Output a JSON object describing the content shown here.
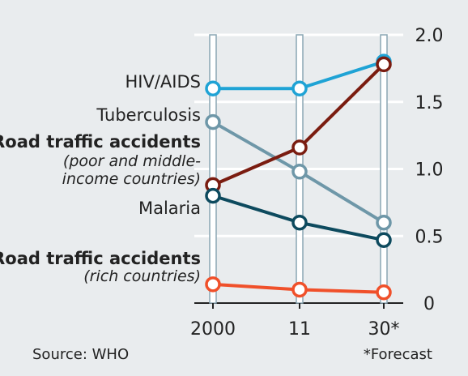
{
  "chart_data": {
    "type": "line",
    "x": [
      "2000",
      "11",
      "30*"
    ],
    "ylim": [
      0,
      2.0
    ],
    "yticks": [
      "0",
      "0.5",
      "1.0",
      "1.5",
      "2.0"
    ],
    "series": [
      {
        "name": "HIV/AIDS",
        "color": "#1fa3d5",
        "values": [
          1.6,
          1.6,
          1.8
        ]
      },
      {
        "name": "Tuberculosis",
        "color": "#6e97a8",
        "values": [
          1.35,
          0.98,
          0.6
        ]
      },
      {
        "name": "Road traffic accidents",
        "note": "(poor and middle-income countries)",
        "color": "#7a1c10",
        "values": [
          0.88,
          1.16,
          1.78
        ]
      },
      {
        "name": "Malaria",
        "color": "#0d4a5e",
        "values": [
          0.8,
          0.6,
          0.47
        ]
      },
      {
        "name": "Road traffic accidents",
        "note": "(rich countries)",
        "color": "#f0502a",
        "values": [
          0.14,
          0.1,
          0.08
        ]
      }
    ]
  },
  "labels": {
    "hiv": "HIV/AIDS",
    "tb": "Tuberculosis",
    "rta_poor_1": "Road traffic accidents",
    "rta_poor_2": "(poor and middle-",
    "rta_poor_3": "income countries)",
    "malaria": "Malaria",
    "rta_rich_1": "Road traffic accidents",
    "rta_rich_2": "(rich countries)"
  },
  "footer": {
    "source": "Source: WHO",
    "note": "*Forecast"
  }
}
